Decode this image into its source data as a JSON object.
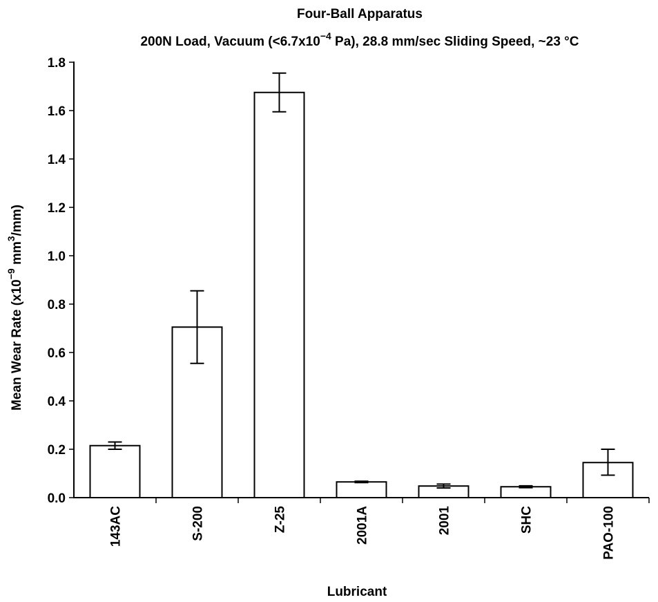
{
  "chart_data": {
    "type": "bar",
    "title": "Four-Ball Apparatus",
    "subtitle": {
      "parts": [
        "200N Load, Vacuum (<6.7x10",
        "−4",
        " Pa), 28.8 mm/sec Sliding Speed, ~23 °C"
      ]
    },
    "xlabel": "Lubricant",
    "ylabel": {
      "parts": [
        "Mean Wear Rate (x10",
        "−9",
        "  mm",
        "3",
        "/mm)"
      ]
    },
    "categories": [
      "143AC",
      "S-200",
      "Z-25",
      "2001A",
      "2001",
      "SHC",
      "PAO-100"
    ],
    "values": [
      0.215,
      0.705,
      1.675,
      0.065,
      0.048,
      0.045,
      0.145
    ],
    "error_low": [
      0.2,
      0.555,
      1.595,
      0.062,
      0.04,
      0.041,
      0.093
    ],
    "error_high": [
      0.23,
      0.855,
      1.755,
      0.068,
      0.056,
      0.049,
      0.2
    ],
    "ylim": [
      0,
      1.8
    ],
    "yticks": [
      "0.0",
      "0.2",
      "0.4",
      "0.6",
      "0.8",
      "1.0",
      "1.2",
      "1.4",
      "1.6",
      "1.8"
    ],
    "grid": false,
    "legend": "none"
  }
}
